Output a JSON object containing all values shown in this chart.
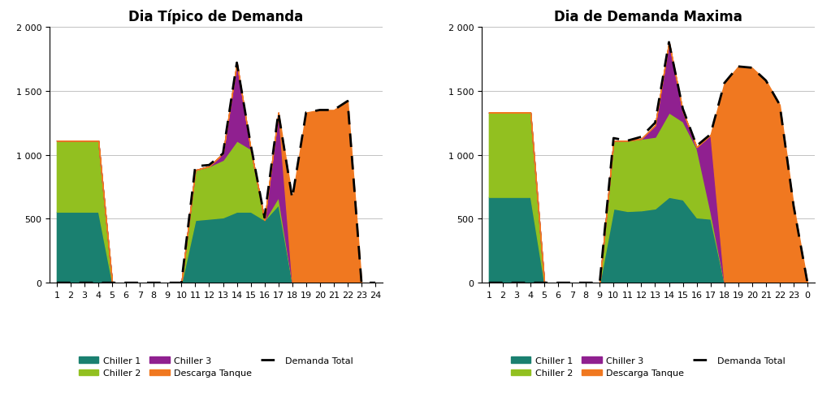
{
  "chart1": {
    "title": "Dia Típico de Demanda",
    "x_labels": [
      "1",
      "2",
      "3",
      "4",
      "5",
      "6",
      "7",
      "8",
      "9",
      "10",
      "11",
      "12",
      "13",
      "14",
      "15",
      "16",
      "17",
      "18",
      "19",
      "20",
      "21",
      "22",
      "23",
      "24"
    ],
    "x_vals": [
      1,
      2,
      3,
      4,
      5,
      6,
      7,
      8,
      9,
      10,
      11,
      12,
      13,
      14,
      15,
      16,
      17,
      18,
      19,
      20,
      21,
      22,
      23,
      24
    ],
    "chiller1": [
      555,
      555,
      555,
      555,
      0,
      0,
      0,
      0,
      0,
      0,
      490,
      500,
      510,
      555,
      555,
      490,
      610,
      0,
      0,
      0,
      0,
      0,
      0,
      0
    ],
    "chiller2": [
      555,
      555,
      555,
      555,
      0,
      0,
      0,
      0,
      0,
      0,
      390,
      410,
      450,
      555,
      490,
      0,
      60,
      0,
      0,
      0,
      0,
      0,
      0,
      0
    ],
    "chiller3": [
      0,
      0,
      0,
      0,
      0,
      0,
      0,
      0,
      0,
      0,
      0,
      0,
      50,
      610,
      0,
      0,
      660,
      0,
      0,
      0,
      0,
      0,
      0,
      0
    ],
    "descarga": [
      0,
      0,
      0,
      0,
      0,
      0,
      0,
      0,
      0,
      0,
      0,
      0,
      0,
      0,
      0,
      0,
      0,
      660,
      1330,
      1350,
      1350,
      1420,
      0,
      0
    ],
    "demanda": [
      0,
      0,
      0,
      0,
      0,
      0,
      0,
      0,
      0,
      0,
      910,
      920,
      1010,
      1720,
      1080,
      510,
      1330,
      660,
      1330,
      1350,
      1350,
      1420,
      0,
      0
    ],
    "ylim": [
      0,
      2000
    ],
    "yticks": [
      0,
      500,
      1000,
      1500,
      2000
    ],
    "xlim": [
      1,
      24
    ]
  },
  "chart2": {
    "title": "Dia de Demanda Maxima",
    "x_labels": [
      "1",
      "2",
      "3",
      "4",
      "5",
      "6",
      "7",
      "8",
      "9",
      "10",
      "11",
      "12",
      "13",
      "14",
      "15",
      "16",
      "17",
      "18",
      "19",
      "20",
      "21",
      "22",
      "23",
      "0"
    ],
    "x_vals": [
      1,
      2,
      3,
      4,
      5,
      6,
      7,
      8,
      9,
      10,
      11,
      12,
      13,
      14,
      15,
      16,
      17,
      18,
      19,
      20,
      21,
      22,
      23,
      24
    ],
    "chiller1": [
      670,
      670,
      670,
      670,
      0,
      0,
      0,
      0,
      0,
      580,
      560,
      565,
      580,
      670,
      650,
      510,
      500,
      0,
      0,
      0,
      0,
      0,
      0,
      0
    ],
    "chiller2": [
      660,
      660,
      660,
      660,
      0,
      0,
      0,
      0,
      0,
      530,
      550,
      560,
      560,
      660,
      610,
      540,
      55,
      0,
      0,
      0,
      0,
      0,
      0,
      0
    ],
    "chiller3": [
      0,
      0,
      0,
      0,
      0,
      0,
      0,
      0,
      0,
      0,
      0,
      0,
      90,
      550,
      80,
      10,
      600,
      0,
      0,
      0,
      0,
      0,
      0,
      0
    ],
    "descarga": [
      0,
      0,
      0,
      0,
      0,
      0,
      0,
      0,
      0,
      0,
      0,
      0,
      0,
      0,
      0,
      0,
      0,
      1560,
      1690,
      1680,
      1580,
      1390,
      600,
      0
    ],
    "demanda": [
      0,
      0,
      0,
      0,
      0,
      0,
      0,
      0,
      0,
      1130,
      1110,
      1140,
      1250,
      1880,
      1360,
      1070,
      1160,
      1560,
      1690,
      1680,
      1580,
      1390,
      600,
      0
    ],
    "ylim": [
      0,
      2000
    ],
    "yticks": [
      0,
      500,
      1000,
      1500,
      2000
    ],
    "xlim": [
      1,
      24
    ]
  },
  "colors": {
    "chiller1": "#1a8070",
    "chiller2": "#92c020",
    "chiller3": "#902090",
    "descarga": "#f07820",
    "demanda": "#000000"
  },
  "legend": {
    "chiller1": "Chiller 1",
    "chiller2": "Chiller 2",
    "chiller3": "Chiller 3",
    "descarga": "Descarga Tanque",
    "demanda": "Demanda Total"
  }
}
